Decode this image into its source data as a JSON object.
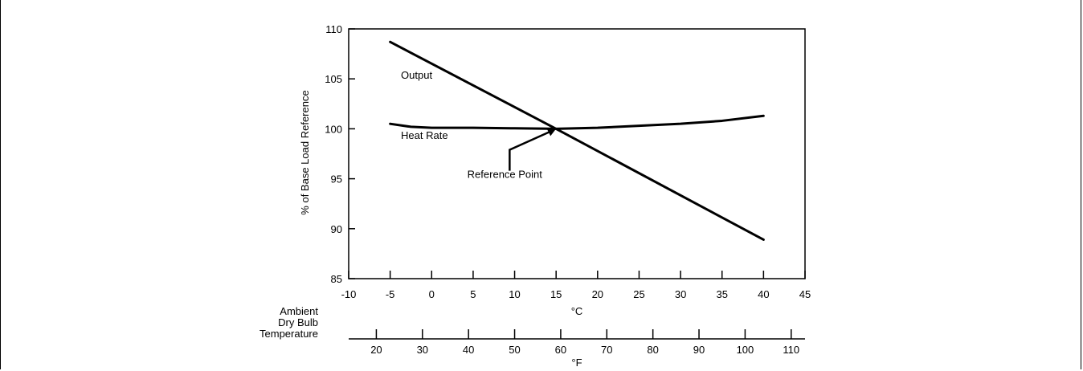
{
  "chart_data": {
    "type": "line",
    "xlabel": "°C",
    "x2label": "°F",
    "ylabel": "% of Base Load Reference",
    "side_label": [
      "Ambient",
      "Dry Bulb",
      "Temperature"
    ],
    "xlim": [
      -10,
      45
    ],
    "ylim": [
      85,
      110
    ],
    "x_ticks": [
      -10,
      -5,
      0,
      5,
      10,
      15,
      20,
      25,
      30,
      35,
      40,
      45
    ],
    "y_ticks": [
      85,
      90,
      95,
      100,
      105,
      110
    ],
    "x2_ticks": [
      20,
      30,
      40,
      50,
      60,
      70,
      80,
      90,
      100,
      110
    ],
    "grid": false,
    "series": [
      {
        "name": "Output",
        "x": [
          -5,
          15,
          40
        ],
        "y": [
          108.7,
          100.0,
          88.9
        ]
      },
      {
        "name": "Heat Rate",
        "x": [
          -5,
          -2.5,
          0,
          5,
          10,
          15,
          20,
          25,
          30,
          35,
          40
        ],
        "y": [
          100.5,
          100.2,
          100.1,
          100.1,
          100.05,
          100.0,
          100.1,
          100.3,
          100.5,
          100.8,
          101.3
        ]
      }
    ],
    "annotations": [
      {
        "text": "Output",
        "x": -3.7,
        "y": 105
      },
      {
        "text": "Heat Rate",
        "x": -3.7,
        "y": 99
      },
      {
        "text": "Reference Point",
        "x": 4.3,
        "y": 95.1,
        "arrow_to": [
          15,
          100
        ]
      }
    ]
  }
}
